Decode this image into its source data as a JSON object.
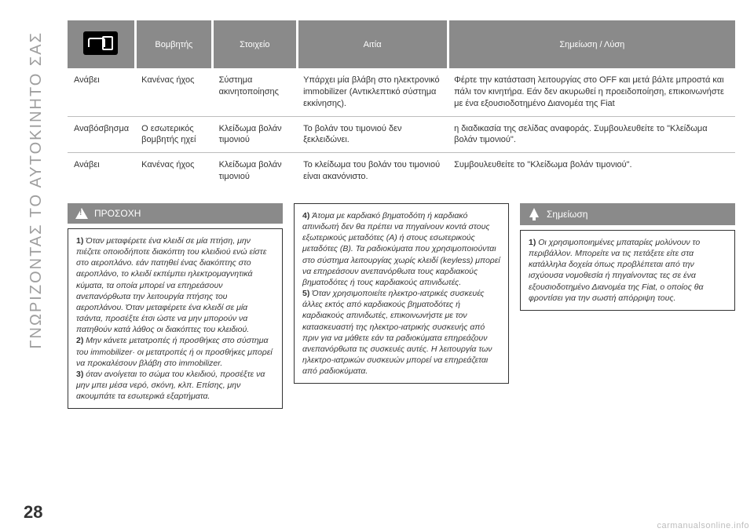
{
  "sideLabel": "ΓΝΩΡΙΖΟΝΤΑΣ ΤΟ ΑΥΤΟΚΙΝΗΤΟ ΣΑΣ",
  "pageNumber": "28",
  "watermark": "carmanualsonline.info",
  "table": {
    "headers": [
      "",
      "Βομβητής",
      "Στοιχείο",
      "Αιτία",
      "Σημείωση / Λύση"
    ],
    "rows": [
      {
        "c1": "Ανάβει",
        "c2": "Κανένας ήχος",
        "c3": "Σύστημα ακινητοποίησης",
        "c4": "Υπάρχει μία βλάβη στο ηλεκτρονικό immobilizer (Αντικλεπτικό σύστημα εκκίνησης).",
        "c5": "Φέρτε την κατάσταση λειτουργίας στο OFF και μετά βάλτε μπροστά και πάλι τον κινητήρα. Εάν δεν ακυρωθεί η προειδοποίηση, επικοινωνήστε με ένα εξουσιοδοτημένο Διανομέα της Fiat"
      },
      {
        "c1": "Αναβόσβησμα",
        "c2": "Ο εσωτερικός βομβητής ηχεί",
        "c3": "Κλείδωμα βολάν τιμονιού",
        "c4": "Το βολάν του τιμονιού δεν ξεκλειδώνει.",
        "c5": "η διαδικασία της σελίδας αναφοράς. Συμβουλευθείτε το \"Κλείδωμα βολάν τιμονιού\"."
      },
      {
        "c1": "Ανάβει",
        "c2": "Κανένας ήχος",
        "c3": "Κλείδωμα βολάν τιμονιού",
        "c4": "Το κλείδωμα του βολάν του τιμονιού είναι ακανόνιστο.",
        "c5": "Συμβουλευθείτε το \"Κλείδωμα βολάν τιμονιού\"."
      }
    ]
  },
  "leftHeader": "ΠΡΟΣΟΧΗ",
  "leftBox": {
    "p1": "Όταν μεταφέρετε ένα κλειδί σε μία πτήση, μην πιέζετε οποιοδήποτε διακόπτη του κλειδιού ενώ είστε στο αεροπλάνο. εάν πατηθεί ένας διακόπτης στο αεροπλάνο, το κλειδί εκπέμπει ηλεκτρομαγνητικά κύματα, τα οποία μπορεί να επηρεάσουν ανεπανόρθωτα την λειτουργία πτήσης του αεροπλάνου. Όταν μεταφέρετε ένα κλειδί σε μία τσάντα, προσέξτε έτσι ώστε να μην μπορούν να πατηθούν κατά λάθος οι διακόπτες του κλειδιού.",
    "p2": "Μην κάνετε μετατροπές ή προσθήκες στο σύστημα του immobilizer· οι μετατροπές ή οι προσθήκες μπορεί να προκαλέσουν βλάβη στο immobilizer.",
    "p3": "όταν ανοίγεται το σώμα του κλειδιού, προσέξτε να μην μπει μέσα νερό, σκόνη, κλπ. Επίσης, μην ακουμπάτε τα εσωτερικά εξαρτήματα."
  },
  "middle": {
    "p4": "Άτομα με καρδιακό βηματοδότη ή καρδιακό απινιδωτή δεν θα πρέπει να πηγαίνουν κοντά στους εξωτερικούς μεταδότες (A) ή στους εσωτερικούς μεταδότες (B). Τα ραδιοκύματα που χρησιμοποιούνται στο σύστημα λειτουργίας χωρίς κλειδί (keyless) μπορεί να επηρεάσουν ανεπανόρθωτα τους καρδιακούς βηματοδότες ή τους καρδιακούς απινιδωτές.",
    "p5": "Όταν χρησιμοποιείτε ηλεκτρο-ιατρικές συσκευές άλλες εκτός από καρδιακούς βηματοδότες ή καρδιακούς απινιδωτές, επικοινωνήστε με τον κατασκευαστή της ηλεκτρο-ιατρικής συσκευής από πριν για να μάθετε εάν τα ραδιοκύματα επηρεάζουν ανεπανόρθωτα τις συσκευές αυτές. Η λειτουργία των ηλεκτρο-ιατρικών συσκευών μπορεί να επηρεάζεται από ραδιοκύματα."
  },
  "rightHeader": "Σημείωση",
  "rightBox": {
    "p1": "Οι χρησιμοποιημένες μπαταρίες μολύνουν το περιβάλλον. Μπορείτε να τις πετάξετε είτε στα κατάλληλα δοχεία όπως προβλέπεται από την ισχύουσα νομοθεσία ή πηγαίνοντας τες σε ένα εξουσιοδοτημένο Διανομέα της Fiat, ο οποίος θα φροντίσει για την σωστή απόρριψη τους."
  }
}
